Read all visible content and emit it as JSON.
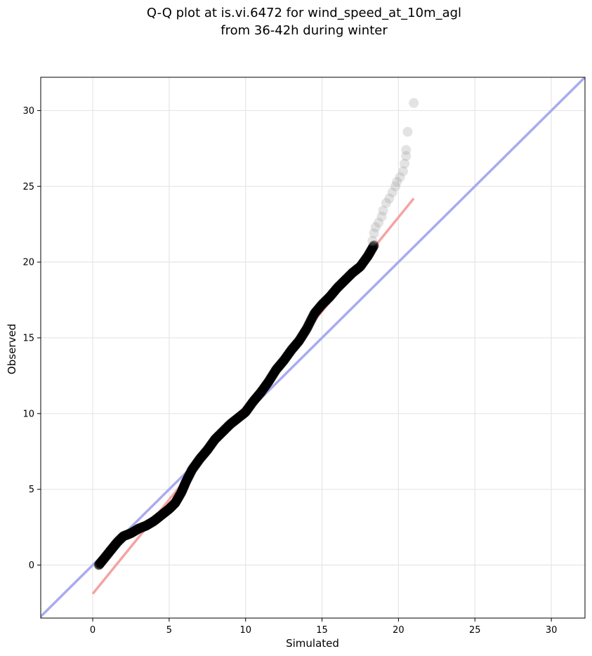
{
  "chart_data": {
    "type": "scatter",
    "title_line1": "Q-Q plot at is.vi.6472 for wind_speed_at_10m_agl",
    "title_line2": "from 36-42h during winter",
    "xlabel": "Simulated",
    "ylabel": "Observed",
    "xlim": [
      -3.4,
      32.2
    ],
    "ylim": [
      -3.5,
      32.2
    ],
    "xticks": [
      0,
      5,
      10,
      15,
      20,
      25,
      30
    ],
    "yticks": [
      0,
      5,
      10,
      15,
      20,
      25,
      30
    ],
    "xtick_labels": [
      "0",
      "5",
      "10",
      "15",
      "20",
      "25",
      "30"
    ],
    "ytick_labels": [
      "0",
      "5",
      "10",
      "15",
      "20",
      "25",
      "30"
    ],
    "grid": true,
    "identity_line": {
      "color": "#aaaaf0",
      "from": -3.5,
      "to": 32.2
    },
    "fit_line": {
      "color": "#f5a3a3",
      "x": [
        0.0,
        21.0
      ],
      "y": [
        -1.9,
        24.2
      ]
    },
    "quantile_curve": {
      "color": "#000000",
      "points": [
        [
          0.4,
          0.0
        ],
        [
          0.8,
          0.5
        ],
        [
          1.2,
          1.0
        ],
        [
          1.6,
          1.5
        ],
        [
          2.0,
          1.9
        ],
        [
          2.5,
          2.1
        ],
        [
          3.0,
          2.4
        ],
        [
          3.5,
          2.6
        ],
        [
          4.0,
          2.9
        ],
        [
          4.5,
          3.3
        ],
        [
          5.0,
          3.7
        ],
        [
          5.4,
          4.1
        ],
        [
          5.8,
          4.8
        ],
        [
          6.1,
          5.5
        ],
        [
          6.5,
          6.3
        ],
        [
          7.0,
          7.0
        ],
        [
          7.5,
          7.6
        ],
        [
          8.0,
          8.3
        ],
        [
          8.5,
          8.8
        ],
        [
          9.0,
          9.3
        ],
        [
          9.5,
          9.7
        ],
        [
          10.0,
          10.1
        ],
        [
          10.5,
          10.8
        ],
        [
          11.0,
          11.4
        ],
        [
          11.5,
          12.1
        ],
        [
          12.0,
          12.9
        ],
        [
          12.5,
          13.5
        ],
        [
          13.0,
          14.2
        ],
        [
          13.5,
          14.8
        ],
        [
          14.0,
          15.6
        ],
        [
          14.5,
          16.6
        ],
        [
          15.0,
          17.2
        ],
        [
          15.5,
          17.7
        ],
        [
          16.0,
          18.3
        ],
        [
          16.5,
          18.8
        ],
        [
          17.0,
          19.3
        ],
        [
          17.5,
          19.7
        ],
        [
          18.0,
          20.4
        ],
        [
          18.4,
          21.1
        ]
      ]
    },
    "tail_points": {
      "color": "#9a9a9a",
      "points": [
        [
          18.3,
          21.4
        ],
        [
          18.4,
          21.9
        ],
        [
          18.5,
          22.3
        ],
        [
          18.7,
          22.6
        ],
        [
          18.9,
          23.0
        ],
        [
          19.0,
          23.4
        ],
        [
          19.2,
          23.9
        ],
        [
          19.4,
          24.2
        ],
        [
          19.6,
          24.6
        ],
        [
          19.8,
          25.0
        ],
        [
          19.9,
          25.3
        ],
        [
          20.1,
          25.6
        ],
        [
          20.3,
          26.0
        ],
        [
          20.4,
          26.5
        ],
        [
          20.5,
          27.0
        ],
        [
          20.5,
          27.4
        ],
        [
          20.6,
          28.6
        ],
        [
          21.0,
          30.5
        ]
      ]
    }
  }
}
